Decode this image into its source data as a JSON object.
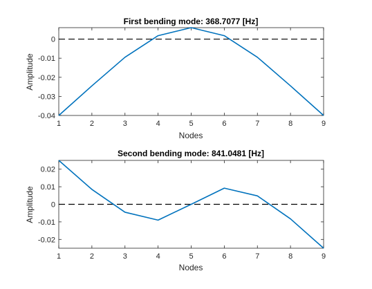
{
  "chart_data": [
    {
      "type": "line",
      "title": "First bending mode: 368.7077 [Hz]",
      "xlabel": "Nodes",
      "ylabel": "Amplitude",
      "xlim": [
        1,
        9
      ],
      "ylim": [
        -0.04,
        0.006
      ],
      "xticks": [
        1,
        2,
        3,
        4,
        5,
        6,
        7,
        8,
        9
      ],
      "yticks": [
        -0.04,
        -0.03,
        -0.02,
        -0.01,
        0
      ],
      "ytick_labels": [
        "-0.04",
        "-0.03",
        "-0.02",
        "-0.01",
        "0"
      ],
      "grid": false,
      "reference_line": {
        "y": 0,
        "style": "dashed",
        "color": "#000000"
      },
      "series": [
        {
          "x": [
            1,
            2,
            3,
            4,
            5,
            6,
            7,
            8,
            9
          ],
          "values": [
            -0.04,
            -0.0245,
            -0.0095,
            0.0018,
            0.006,
            0.0018,
            -0.0095,
            -0.0245,
            -0.04
          ],
          "color": "#0072BD"
        }
      ]
    },
    {
      "type": "line",
      "title": "Second bending mode: 841.0481 [Hz]",
      "xlabel": "Nodes",
      "ylabel": "Amplitude",
      "xlim": [
        1,
        9
      ],
      "ylim": [
        -0.025,
        0.025
      ],
      "xticks": [
        1,
        2,
        3,
        4,
        5,
        6,
        7,
        8,
        9
      ],
      "yticks": [
        -0.02,
        -0.01,
        0,
        0.01,
        0.02
      ],
      "ytick_labels": [
        "-0.02",
        "-0.01",
        "0",
        "0.01",
        "0.02"
      ],
      "grid": false,
      "reference_line": {
        "y": 0,
        "style": "dashed",
        "color": "#000000"
      },
      "series": [
        {
          "x": [
            1,
            2,
            3,
            4,
            5,
            6,
            7,
            8,
            9
          ],
          "values": [
            0.025,
            0.0085,
            -0.0045,
            -0.009,
            0.0,
            0.0092,
            0.0048,
            -0.0083,
            -0.025
          ],
          "color": "#0072BD"
        }
      ]
    }
  ]
}
